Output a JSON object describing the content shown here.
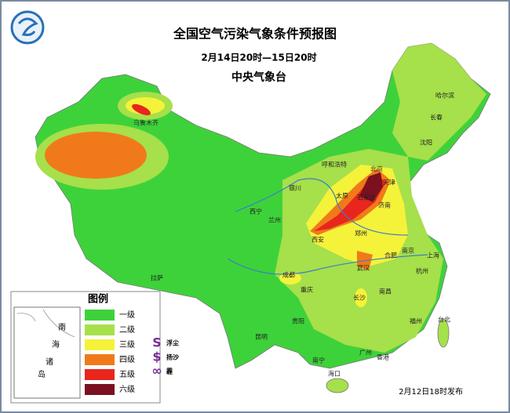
{
  "header": {
    "title": "全国空气污染气象条件预报图",
    "period": "2月14日20时—15日20时",
    "issuer": "中央气象台"
  },
  "legend": {
    "title": "图例",
    "levels": [
      {
        "label": "一级",
        "color": "#3ed23a"
      },
      {
        "label": "二级",
        "color": "#a6e04a"
      },
      {
        "label": "三级",
        "color": "#f5f23a"
      },
      {
        "label": "四级",
        "color": "#f07a1a"
      },
      {
        "label": "五级",
        "color": "#e8261e"
      },
      {
        "label": "六级",
        "color": "#7a1020"
      }
    ],
    "symbols": [
      {
        "symbol": "S",
        "label": "浮尘"
      },
      {
        "symbol": "$",
        "label": "扬沙"
      },
      {
        "symbol": "∞",
        "label": "霾"
      }
    ]
  },
  "inset": {
    "labels": [
      "南",
      "海",
      "诸",
      "岛"
    ]
  },
  "cities": [
    "乌鲁木齐",
    "哈尔滨",
    "长春",
    "沈阳",
    "呼和浩特",
    "北京",
    "天津",
    "石家庄",
    "太原",
    "济南",
    "银川",
    "兰州",
    "西宁",
    "西安",
    "郑州",
    "合肥",
    "南京",
    "上海",
    "杭州",
    "武汉",
    "成都",
    "重庆",
    "长沙",
    "南昌",
    "贵阳",
    "昆明",
    "福州",
    "台北",
    "广州",
    "南宁",
    "香港",
    "海口",
    "拉萨"
  ],
  "footer": {
    "published": "2月12日18时发布"
  }
}
